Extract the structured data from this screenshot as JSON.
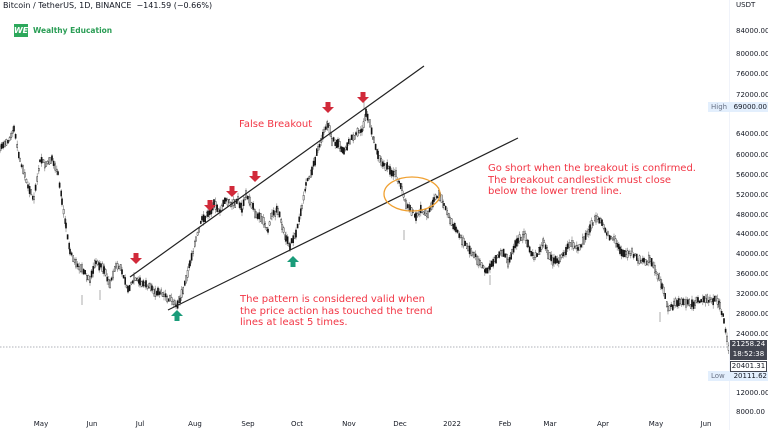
{
  "header": {
    "symbol": "Bitcoin / TetherUS, 1D, BINANCE",
    "change": "−141.59 (−0.66%)"
  },
  "brand": {
    "mark": "WE",
    "name": "Wealthy Education",
    "color": "#2ca85b"
  },
  "price_axis": {
    "unit": "USDT",
    "ticks": [
      "84000.00",
      "80000.00",
      "76000.00",
      "72000.00",
      "64000.00",
      "60000.00",
      "56000.00",
      "52000.00",
      "48000.00",
      "44000.00",
      "40000.00",
      "36000.00",
      "32000.00",
      "28000.00",
      "24000.00",
      "12000.00",
      "8000.00"
    ],
    "high": {
      "label": "High",
      "value": "69000.00"
    },
    "low": {
      "label": "Low",
      "value": "20111.62"
    },
    "last_price": "21258.24",
    "countdown": "18:52:38",
    "boxed_price": "20401.31"
  },
  "time_axis": {
    "labels": [
      "May",
      "Jun",
      "Jul",
      "Aug",
      "Sep",
      "Oct",
      "Nov",
      "Dec",
      "2022",
      "Feb",
      "Mar",
      "Apr",
      "May",
      "Jun"
    ]
  },
  "annotations": {
    "false_breakout": "False Breakout",
    "go_short": "Go short when the breakout is confirmed.\nThe breakout candlestick must close\nbelow the lower trend line.",
    "pattern_valid": "The pattern is considered valid when\nthe price action has touched the trend\nlines at least 5 times.",
    "down_arrow_color": "#d12a3a",
    "up_arrow_color": "#1a9c7a",
    "circle_color": "#f0a030"
  }
}
